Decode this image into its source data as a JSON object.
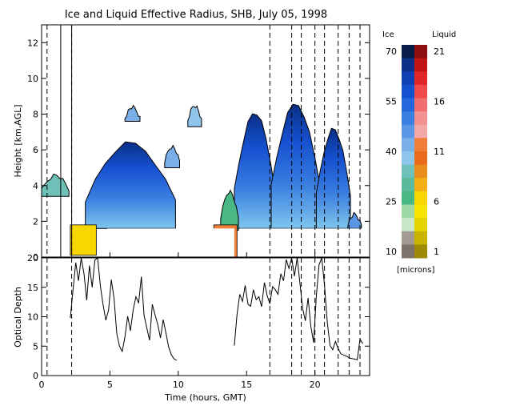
{
  "chart_data": [
    {
      "type": "heatmap",
      "title": "Ice and Liquid Effective Radius, SHB, July 05, 1998",
      "ylabel": "Height [km,AGL]",
      "xlim": [
        0,
        24
      ],
      "ylim": [
        0,
        13
      ],
      "yticks": [
        0,
        2,
        4,
        6,
        8,
        10,
        12
      ],
      "y_tick_labels": [
        "0",
        "2",
        "4",
        "6",
        "8",
        "10",
        "12"
      ],
      "dashed_times": [
        0.4,
        2.2,
        16.7,
        18.3,
        19.0,
        20.0,
        20.7,
        21.7,
        22.5,
        23.3
      ],
      "instrument_gap_times": [
        1.4,
        2.2
      ],
      "ice_cloud_layers": [
        {
          "x": [
            0.0,
            2.0
          ],
          "base": 3.4,
          "top": 4.7,
          "re": 34
        },
        {
          "x": [
            3.2,
            9.8
          ],
          "base": 1.6,
          "top": 6.5,
          "re": 62
        },
        {
          "x": [
            9.0,
            10.1
          ],
          "base": 5.0,
          "top": 6.3,
          "re": 42
        },
        {
          "x": [
            6.1,
            7.2
          ],
          "base": 7.6,
          "top": 8.5,
          "re": 44
        },
        {
          "x": [
            10.7,
            11.7
          ],
          "base": 7.3,
          "top": 8.6,
          "re": 40
        },
        {
          "x": [
            14.1,
            17.1
          ],
          "base": 1.6,
          "top": 8.2,
          "re": 60
        },
        {
          "x": [
            16.8,
            20.4
          ],
          "base": 1.6,
          "top": 8.7,
          "re": 63
        },
        {
          "x": [
            20.1,
            22.6
          ],
          "base": 1.6,
          "top": 7.3,
          "re": 58
        },
        {
          "x": [
            22.4,
            23.4
          ],
          "base": 1.6,
          "top": 2.5,
          "re": 48
        },
        {
          "x": [
            13.1,
            14.4
          ],
          "base": 1.5,
          "top": 3.8,
          "re": 28
        }
      ],
      "liquid_cloud_layers": [
        {
          "x": [
            2.1,
            4.0
          ],
          "base": 0.1,
          "top": 1.8,
          "re": 7
        },
        {
          "x": [
            12.6,
            14.3
          ],
          "base": 0.0,
          "top": 1.8,
          "re": 12
        }
      ]
    },
    {
      "type": "line",
      "xlabel": "Time (hours, GMT)",
      "ylabel": "Optical Depth",
      "xlim": [
        0,
        24
      ],
      "ylim": [
        0,
        20
      ],
      "xticks": [
        0,
        5,
        10,
        15,
        20
      ],
      "x_tick_labels": [
        "0",
        "5",
        "10",
        "15",
        "20"
      ],
      "yticks": [
        0,
        5,
        10,
        15,
        20
      ],
      "y_tick_labels": [
        "0",
        "5",
        "10",
        "15",
        "20"
      ],
      "x": [
        2.1,
        2.3,
        2.5,
        2.7,
        2.9,
        3.1,
        3.3,
        3.5,
        3.7,
        3.9,
        4.1,
        4.3,
        4.5,
        4.7,
        4.9,
        5.1,
        5.3,
        5.5,
        5.7,
        5.9,
        6.1,
        6.3,
        6.5,
        6.7,
        6.9,
        7.1,
        7.3,
        7.5,
        7.7,
        7.9,
        8.1,
        8.3,
        8.5,
        8.7,
        8.9,
        9.1,
        9.3,
        9.5,
        9.7,
        9.9,
        14.1,
        14.3,
        14.5,
        14.7,
        14.9,
        15.1,
        15.3,
        15.5,
        15.7,
        15.9,
        16.1,
        16.3,
        16.5,
        16.7,
        16.9,
        17.1,
        17.3,
        17.5,
        17.7,
        17.9,
        18.1,
        18.3,
        18.5,
        18.7,
        18.9,
        19.1,
        19.3,
        19.5,
        19.7,
        19.9,
        20.1,
        20.3,
        20.5,
        20.7,
        20.9,
        21.1,
        21.3,
        21.5,
        21.7,
        21.9,
        22.1,
        22.3,
        22.5,
        22.7,
        22.9,
        23.1,
        23.3,
        23.5
      ],
      "y": [
        9.8,
        14.6,
        19.2,
        16.1,
        20.0,
        17.3,
        12.8,
        18.7,
        15.0,
        19.6,
        20.0,
        15.2,
        12.0,
        9.4,
        11.1,
        16.3,
        13.2,
        7.1,
        5.0,
        4.1,
        6.6,
        10.1,
        7.6,
        11.2,
        13.4,
        12.3,
        16.8,
        10.2,
        8.1,
        6.0,
        12.1,
        10.3,
        8.7,
        6.4,
        9.5,
        7.2,
        4.8,
        3.5,
        2.8,
        2.6,
        5.1,
        10.4,
        13.8,
        12.6,
        15.3,
        12.1,
        11.8,
        14.6,
        12.9,
        13.4,
        11.7,
        15.8,
        13.6,
        12.2,
        15.1,
        14.6,
        13.8,
        17.3,
        16.1,
        19.7,
        18.2,
        20.0,
        16.9,
        20.0,
        15.7,
        11.4,
        9.3,
        13.2,
        8.4,
        5.6,
        13.5,
        18.8,
        20.0,
        15.4,
        9.2,
        5.1,
        4.4,
        5.8,
        4.6,
        3.7,
        3.5,
        3.3,
        3.0,
        2.9,
        2.8,
        2.7,
        6.2,
        5.4
      ]
    },
    {
      "type": "colorbar",
      "ice_label": "Ice",
      "liquid_label": "Liquid",
      "unit_label": "[microns]",
      "ice_ticks": [
        70,
        55,
        40,
        25,
        10
      ],
      "liquid_ticks": [
        21,
        16,
        11,
        6,
        1
      ],
      "ice_colors": [
        "#081c4a",
        "#0a2f86",
        "#0f3fb3",
        "#1550d0",
        "#2366db",
        "#3a7ee0",
        "#5a96e4",
        "#7aaee9",
        "#8fc4eb",
        "#6fc0b8",
        "#5cb99b",
        "#4ab884",
        "#9fd9a5",
        "#c9e8c8",
        "#a39a91",
        "#7e736a"
      ],
      "liquid_colors": [
        "#8e0f0f",
        "#c01313",
        "#e02626",
        "#f04a4a",
        "#f26d6d",
        "#f39090",
        "#f3a7a7",
        "#f07f3a",
        "#e86a1a",
        "#e98d1d",
        "#f2b016",
        "#f8d600",
        "#f7e400",
        "#e6d400",
        "#c8b400",
        "#9c8a06"
      ]
    }
  ]
}
